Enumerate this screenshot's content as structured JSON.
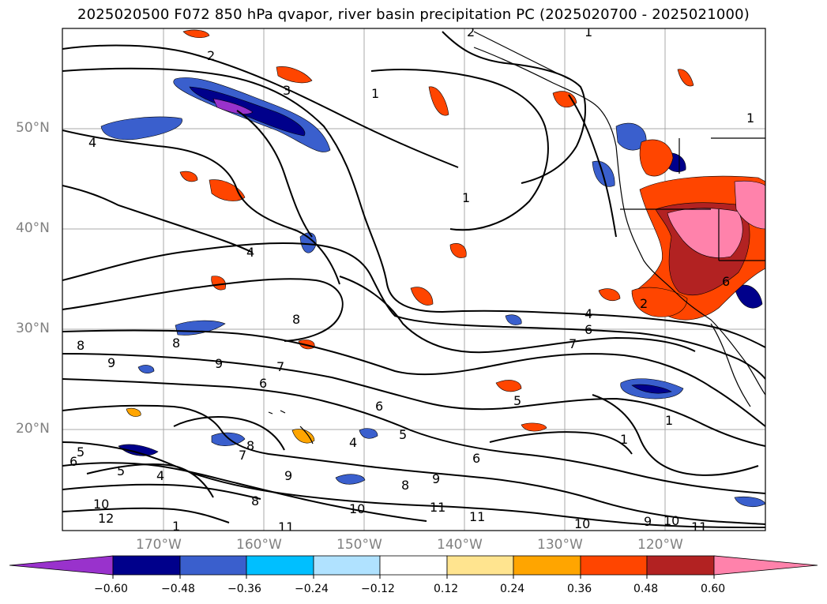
{
  "title": "2025020500 F072 850 hPa qvapor, river basin precipitation PC (2025020700 - 2025021000)",
  "lat_labels": [
    "50°N",
    "40°N",
    "30°N",
    "20°N"
  ],
  "lon_labels": [
    "170°W",
    "160°W",
    "150°W",
    "140°W",
    "130°W",
    "120°W"
  ],
  "contour_labels": [
    "1",
    "2",
    "3",
    "4",
    "5",
    "6",
    "7",
    "8",
    "9",
    "10",
    "11",
    "12"
  ],
  "colorbar": {
    "tick_labels": [
      "−0.60",
      "−0.48",
      "−0.36",
      "−0.24",
      "−0.12",
      "0.12",
      "0.24",
      "0.36",
      "0.48",
      "0.60"
    ],
    "colors": [
      "#9932cc",
      "#00008b",
      "#3a5fcd",
      "#00bfff",
      "#b0e2ff",
      "#ffffff",
      "#ffe48f",
      "#ffa500",
      "#ff4500",
      "#b22222",
      "#ff82ab"
    ]
  }
}
